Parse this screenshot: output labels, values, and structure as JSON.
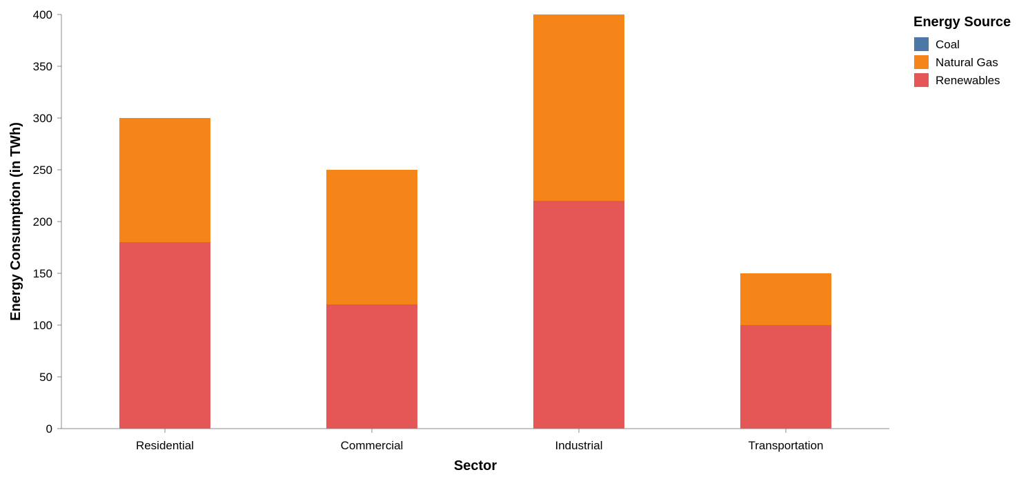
{
  "chart_data": {
    "type": "bar",
    "stacked": true,
    "categories": [
      "Residential",
      "Commercial",
      "Industrial",
      "Transportation"
    ],
    "series": [
      {
        "name": "Coal",
        "color": "#4c78a8",
        "values": [
          0,
          0,
          0,
          0
        ]
      },
      {
        "name": "Renewables",
        "color": "#e45756",
        "values": [
          180,
          120,
          220,
          100
        ]
      },
      {
        "name": "Natural Gas",
        "color": "#f58518",
        "values": [
          120,
          130,
          180,
          50
        ]
      }
    ],
    "xlabel": "Sector",
    "ylabel": "Energy Consumption (in TWh)",
    "ylim": [
      0,
      400
    ],
    "yticks": [
      0,
      50,
      100,
      150,
      200,
      250,
      300,
      350,
      400
    ],
    "grid": false,
    "legend": {
      "title": "Energy Source",
      "position": "top-right",
      "entries": [
        {
          "label": "Coal",
          "color": "#4c78a8"
        },
        {
          "label": "Natural Gas",
          "color": "#f58518"
        },
        {
          "label": "Renewables",
          "color": "#e45756"
        }
      ]
    }
  }
}
